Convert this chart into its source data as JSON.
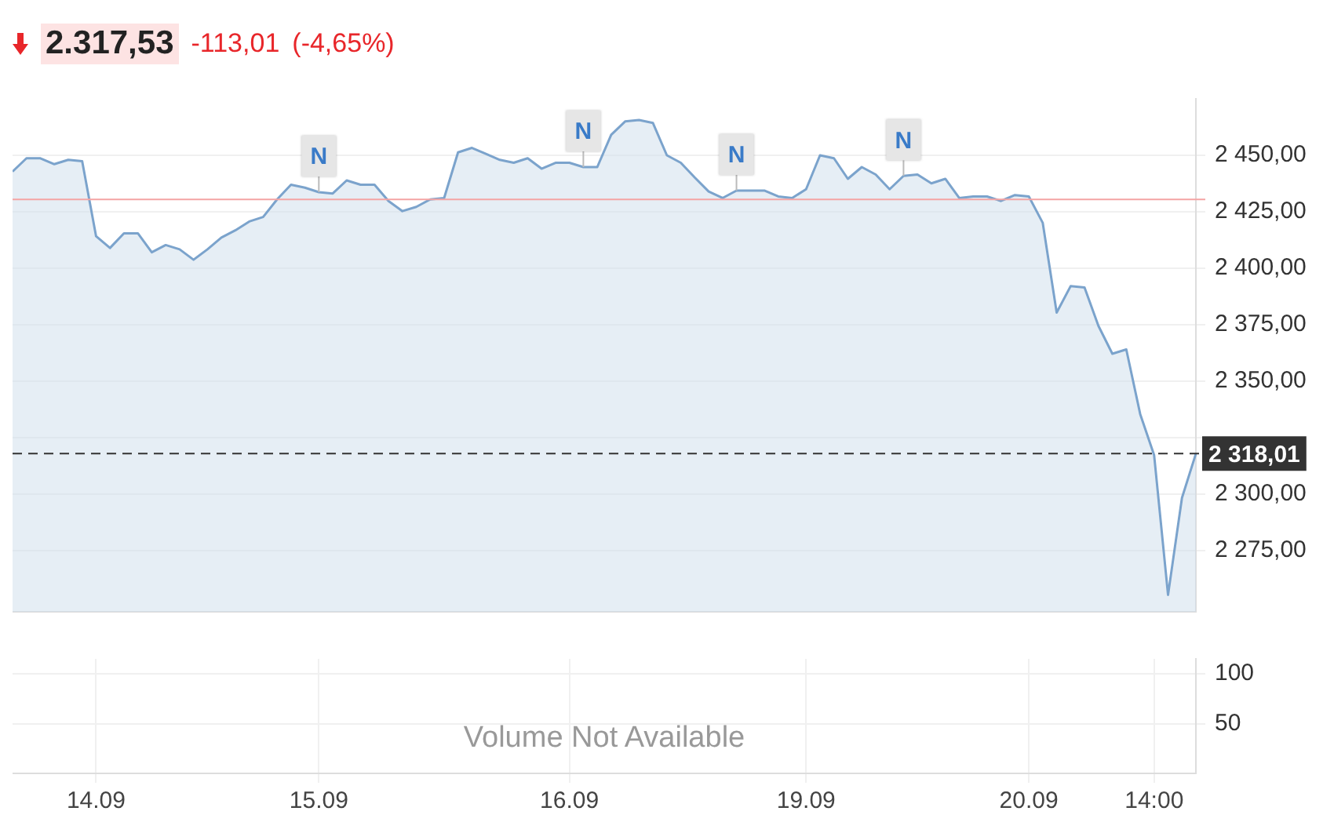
{
  "chart_data": [
    {
      "type": "area",
      "annotations": [
        "2.317,53",
        "-113,01",
        "(-4,65%)",
        {
          "text": "N",
          "y": 2433.7
        },
        {
          "text": "N",
          "y": 2444.8
        },
        {
          "text": "N",
          "y": 2434.4
        },
        {
          "text": "N",
          "y": 2440.9
        }
      ],
      "categories": [
        null,
        null,
        null,
        null,
        null,
        null,
        null,
        null,
        null,
        null,
        null,
        null,
        null,
        null,
        null,
        null,
        null,
        null,
        null,
        null,
        null,
        null,
        null,
        null,
        null,
        null,
        null,
        null,
        null,
        null,
        null,
        null,
        null,
        null,
        null,
        null,
        null,
        null,
        null,
        null,
        null,
        null,
        null,
        null,
        null,
        null,
        null,
        null,
        null,
        null,
        null,
        null,
        null,
        null,
        null,
        null,
        null,
        null,
        null,
        null,
        null,
        null,
        null,
        null,
        null,
        null,
        null,
        null,
        null,
        null,
        null,
        null,
        null,
        null,
        null,
        null,
        null,
        null,
        null,
        null,
        null,
        null,
        null,
        null,
        null,
        null
      ],
      "series": [
        {
          "color": "#7ba3cc",
          "values": [
            2442.8,
            2448.7,
            2448.7,
            2446.1,
            2448.0,
            2447.4,
            2414.2,
            2409.0,
            2415.5,
            2415.5,
            2407.1,
            2410.3,
            2408.4,
            2403.8,
            2408.4,
            2413.6,
            2416.8,
            2420.7,
            2422.7,
            2430.5,
            2437.0,
            2435.7,
            2433.7,
            2433.1,
            2438.9,
            2437.0,
            2437.0,
            2429.8,
            2425.3,
            2427.2,
            2430.5,
            2431.1,
            2451.3,
            2453.3,
            2450.7,
            2448.0,
            2446.7,
            2448.7,
            2444.1,
            2446.7,
            2446.7,
            2444.8,
            2444.8,
            2459.1,
            2465.0,
            2465.6,
            2464.3,
            2450.0,
            2446.7,
            2440.2,
            2434.0,
            2431.1,
            2434.4,
            2434.4,
            2434.4,
            2431.8,
            2431.1,
            2435.0,
            2450.0,
            2448.7,
            2439.6,
            2444.8,
            2441.5,
            2435.0,
            2440.9,
            2441.5,
            2437.6,
            2439.6,
            2431.1,
            2431.8,
            2431.8,
            2429.8,
            2432.4,
            2431.8,
            2420.1,
            2380.4,
            2392.1,
            2391.5,
            2374.5,
            2362.2,
            2364.1,
            2335.5,
            2317.3,
            2255.5,
            2298.4,
            2318.0
          ]
        }
      ],
      "ylim": [
        2248,
        2475
      ],
      "yticks": [
        {
          "value": 2275,
          "label": "2 275,00"
        },
        {
          "value": 2300,
          "label": "2 300,00"
        },
        {
          "value": 2325,
          "label": null
        },
        {
          "value": 2350,
          "label": "2 350,00"
        },
        {
          "value": 2375,
          "label": "2 375,00"
        },
        {
          "value": 2400,
          "label": "2 400,00"
        },
        {
          "value": 2425,
          "label": "2 425,00"
        },
        {
          "value": 2450,
          "label": "2 450,00"
        }
      ],
      "ref_lines": [
        {
          "axis": "y",
          "value": 2430.5,
          "color": "#f4a4a4"
        },
        {
          "axis": "y",
          "value": 2318.01,
          "label": "2 318,01",
          "color": "#333333",
          "line_style": "dashed"
        }
      ],
      "grid": "y",
      "tick_labels": "y"
    },
    {
      "type": "bar",
      "annotations": [
        "Volume Not Available"
      ],
      "categories": [
        null,
        null,
        null,
        null,
        null,
        null,
        "14.09",
        null,
        null,
        null,
        null,
        null,
        null,
        null,
        null,
        null,
        null,
        null,
        null,
        null,
        null,
        null,
        "15.09",
        null,
        null,
        null,
        null,
        null,
        null,
        null,
        null,
        null,
        null,
        null,
        null,
        null,
        null,
        null,
        null,
        null,
        "16.09",
        null,
        null,
        null,
        null,
        null,
        null,
        null,
        null,
        null,
        null,
        null,
        null,
        null,
        null,
        null,
        null,
        "19.09",
        null,
        null,
        null,
        null,
        null,
        null,
        null,
        null,
        null,
        null,
        null,
        null,
        null,
        null,
        null,
        "20.09",
        null,
        null,
        null,
        null,
        null,
        null,
        null,
        null,
        "14:00",
        null,
        null,
        null
      ],
      "series": [
        {
          "color": "#7ba3cc",
          "values": [
            null,
            null,
            null,
            null,
            null,
            null,
            null,
            null,
            null,
            null,
            null,
            null,
            null,
            null,
            null,
            null,
            null,
            null,
            null,
            null,
            null,
            null,
            null,
            null,
            null,
            null,
            null,
            null,
            null,
            null,
            null,
            null,
            null,
            null,
            null,
            null,
            null,
            null,
            null,
            null,
            null,
            null,
            null,
            null,
            null,
            null,
            null,
            null,
            null,
            null,
            null,
            null,
            null,
            null,
            null,
            null,
            null,
            null,
            null,
            null,
            null,
            null,
            null,
            null,
            null,
            null,
            null,
            null,
            null,
            null,
            null,
            null,
            null,
            null,
            null,
            null,
            null,
            null,
            null,
            null,
            null,
            null,
            null,
            null,
            null,
            null
          ]
        }
      ],
      "ylim": [
        0,
        115
      ],
      "yticks": [
        50,
        100
      ],
      "grid": true
    }
  ]
}
